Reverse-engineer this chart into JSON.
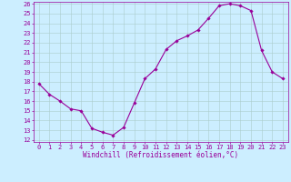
{
  "x": [
    0,
    1,
    2,
    3,
    4,
    5,
    6,
    7,
    8,
    9,
    10,
    11,
    12,
    13,
    14,
    15,
    16,
    17,
    18,
    19,
    20,
    21,
    22,
    23
  ],
  "y": [
    17.8,
    16.7,
    16.0,
    15.2,
    15.0,
    13.2,
    12.8,
    12.5,
    13.3,
    15.8,
    18.3,
    19.3,
    21.3,
    22.2,
    22.7,
    23.3,
    24.5,
    25.8,
    26.0,
    25.8,
    25.3,
    21.2,
    19.0,
    18.3
  ],
  "line_color": "#990099",
  "marker": "D",
  "marker_size": 1.8,
  "bg_color": "#cceeff",
  "grid_color": "#aacccc",
  "xlabel": "Windchill (Refroidissement éolien,°C)",
  "xlabel_color": "#990099",
  "tick_color": "#990099",
  "ylim": [
    12,
    26
  ],
  "xlim": [
    -0.5,
    23.5
  ],
  "yticks": [
    12,
    13,
    14,
    15,
    16,
    17,
    18,
    19,
    20,
    21,
    22,
    23,
    24,
    25,
    26
  ],
  "xticks": [
    0,
    1,
    2,
    3,
    4,
    5,
    6,
    7,
    8,
    9,
    10,
    11,
    12,
    13,
    14,
    15,
    16,
    17,
    18,
    19,
    20,
    21,
    22,
    23
  ],
  "label_fontsize": 5.5,
  "tick_fontsize": 5.0,
  "line_width": 0.8
}
